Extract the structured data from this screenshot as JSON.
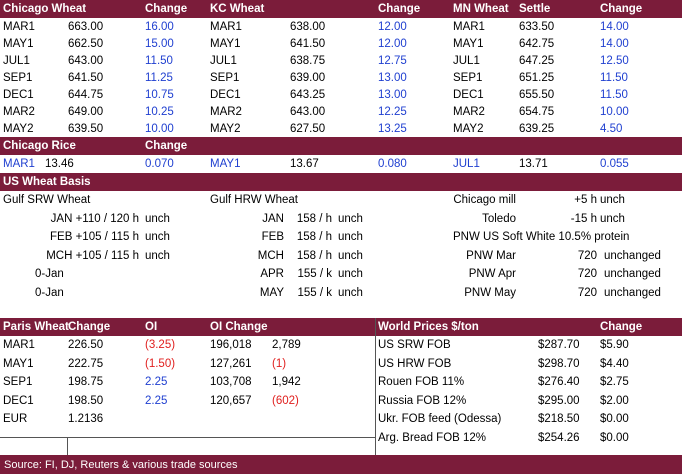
{
  "futures": {
    "headers": [
      "Chicago Wheat",
      "Change",
      "KC Wheat",
      "Change",
      "MN Wheat",
      "Settle",
      "Change"
    ],
    "rows": [
      [
        "MAR1",
        "663.00",
        "16.00",
        "MAR1",
        "638.00",
        "12.00",
        "MAR1",
        "633.50",
        "14.00"
      ],
      [
        "MAY1",
        "662.50",
        "15.00",
        "MAY1",
        "641.50",
        "12.00",
        "MAY1",
        "642.75",
        "14.00"
      ],
      [
        "JUL1",
        "643.00",
        "11.50",
        "JUL1",
        "638.75",
        "12.75",
        "JUL1",
        "647.25",
        "12.50"
      ],
      [
        "SEP1",
        "641.50",
        "11.25",
        "SEP1",
        "639.00",
        "13.00",
        "SEP1",
        "651.25",
        "11.50"
      ],
      [
        "DEC1",
        "644.75",
        "10.75",
        "DEC1",
        "643.25",
        "13.00",
        "DEC1",
        "655.50",
        "11.50"
      ],
      [
        "MAR2",
        "649.00",
        "10.25",
        "MAR2",
        "643.00",
        "12.25",
        "MAR2",
        "654.75",
        "10.00"
      ],
      [
        "MAY2",
        "639.50",
        "10.00",
        "MAY2",
        "627.50",
        "13.25",
        "MAY2",
        "639.25",
        "4.50"
      ]
    ]
  },
  "rice": {
    "headers": [
      "Chicago Rice",
      "Change"
    ],
    "row": [
      "MAR1",
      "13.46",
      "0.070",
      "MAY1",
      "13.67",
      "0.080",
      "JUL1",
      "13.71",
      "0.055"
    ]
  },
  "basis": {
    "title": "US Wheat Basis",
    "left": [
      [
        "Gulf SRW Wheat"
      ],
      [
        "JAN +110 / 120 h",
        "unch"
      ],
      [
        "FEB +105 / 115 h",
        "unch"
      ],
      [
        "MCH +105 / 115 h",
        "unch"
      ],
      [
        "0-Jan"
      ],
      [
        "0-Jan"
      ]
    ],
    "mid": [
      [
        "Gulf HRW Wheat"
      ],
      [
        "JAN",
        "158 / h",
        "unch"
      ],
      [
        "FEB",
        "158 / h",
        "unch"
      ],
      [
        "MCH",
        "158 / h",
        "unch"
      ],
      [
        "APR",
        "155 / k",
        "unch"
      ],
      [
        "MAY",
        "155 / k",
        "unch"
      ]
    ],
    "right": [
      [
        "Chicago mill",
        "+5 h",
        "unch"
      ],
      [
        "Toledo",
        "-15 h",
        "unch"
      ],
      [
        "PNW US Soft White 10.5% protein"
      ],
      [
        "PNW Mar",
        "720",
        "unchanged"
      ],
      [
        "PNW Apr",
        "720",
        "unchanged"
      ],
      [
        "PNW May",
        "720",
        "unchanged"
      ]
    ]
  },
  "paris": {
    "headers": [
      "Paris Wheat",
      "Change",
      "OI",
      "OI Change"
    ],
    "rows": [
      [
        "MAR1",
        "226.50",
        "(3.25)",
        "196,018",
        "2,789"
      ],
      [
        "MAY1",
        "222.75",
        "(1.50)",
        "127,261",
        "(1)"
      ],
      [
        "SEP1",
        "198.75",
        "2.25",
        "103,708",
        "1,942"
      ],
      [
        "DEC1",
        "198.50",
        "2.25",
        "120,657",
        "(602)"
      ],
      [
        "EUR",
        "1.2136"
      ]
    ]
  },
  "world": {
    "headers": [
      "World Prices $/ton",
      "Change"
    ],
    "rows": [
      [
        "US SRW FOB",
        "$287.70",
        "$5.90"
      ],
      [
        "US HRW FOB",
        "$298.70",
        "$4.40"
      ],
      [
        "Rouen FOB 11%",
        "$276.40",
        "$2.75"
      ],
      [
        "Russia FOB 12%",
        "$295.00",
        "$2.00"
      ],
      [
        "Ukr. FOB feed (Odessa)",
        "$218.50",
        "$0.00"
      ],
      [
        "Arg. Bread FOB 12%",
        "$254.26",
        "$0.00"
      ]
    ]
  },
  "footer": "Source: FI, DJ, Reuters & various trade sources"
}
